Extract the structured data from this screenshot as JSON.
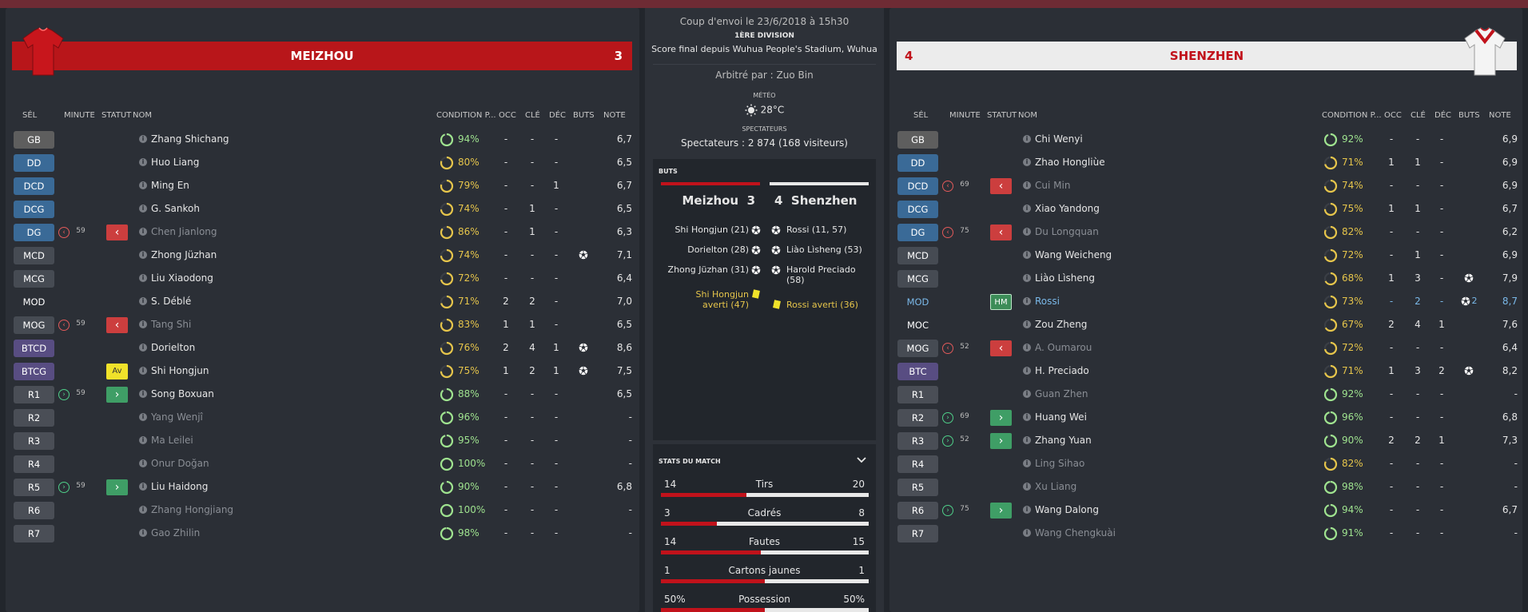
{
  "colors": {
    "home": "#b8161a",
    "away": "#ececec",
    "accent_yellow": "#e6c54b",
    "accent_green": "#9fe38f"
  },
  "headers": {
    "sel": "SÉL",
    "minute": "MINUTE",
    "statut": "STATUT",
    "nom": "NOM",
    "condition": "CONDITION P...",
    "occ": "OCC",
    "cle": "CLÉ",
    "dec": "DÉC",
    "buts": "BUTS",
    "note": "NOTE"
  },
  "home": {
    "name": "MEIZHOU",
    "score": "3",
    "players": [
      {
        "pos": "GB",
        "pclass": "gk",
        "name": "Zhang Shichang",
        "cond": "94%",
        "cc": "g",
        "pct": 0.94,
        "occ": "-",
        "cle": "-",
        "dec": "-",
        "goal": false,
        "note": "6,7"
      },
      {
        "pos": "DD",
        "pclass": "def",
        "name": "Huo Liang",
        "cond": "80%",
        "cc": "y",
        "pct": 0.8,
        "occ": "-",
        "cle": "-",
        "dec": "-",
        "goal": false,
        "note": "6,5"
      },
      {
        "pos": "DCD",
        "pclass": "def",
        "name": "Ming En",
        "cond": "79%",
        "cc": "y",
        "pct": 0.79,
        "occ": "-",
        "cle": "-",
        "dec": "1",
        "goal": false,
        "note": "6,7"
      },
      {
        "pos": "DCG",
        "pclass": "def",
        "name": "G. Sankoh",
        "cond": "74%",
        "cc": "y",
        "pct": 0.74,
        "occ": "-",
        "cle": "1",
        "dec": "-",
        "goal": false,
        "note": "6,5"
      },
      {
        "pos": "DG",
        "pclass": "def",
        "sub": "out",
        "minute": "59",
        "status": "out",
        "name": "Chen Jianlong",
        "dim": true,
        "cond": "86%",
        "cc": "y",
        "pct": 0.86,
        "occ": "-",
        "cle": "1",
        "dec": "-",
        "goal": false,
        "note": "6,3"
      },
      {
        "pos": "MCD",
        "pclass": "mid",
        "name": "Zhong Jüzhan",
        "cond": "74%",
        "cc": "y",
        "pct": 0.74,
        "occ": "-",
        "cle": "-",
        "dec": "-",
        "goal": true,
        "note": "7,1"
      },
      {
        "pos": "MCG",
        "pclass": "mid",
        "name": "Liu Xiaodong",
        "cond": "72%",
        "cc": "y",
        "pct": 0.72,
        "occ": "-",
        "cle": "-",
        "dec": "-",
        "goal": false,
        "note": "6,4"
      },
      {
        "pos": "MOD",
        "pclass": "plain",
        "name": "S. Déblé",
        "cond": "71%",
        "cc": "y",
        "pct": 0.71,
        "occ": "2",
        "cle": "2",
        "dec": "-",
        "goal": false,
        "note": "7,0"
      },
      {
        "pos": "MOG",
        "pclass": "mid",
        "sub": "out",
        "minute": "59",
        "status": "out",
        "name": "Tang Shi",
        "dim": true,
        "cond": "83%",
        "cc": "y",
        "pct": 0.83,
        "occ": "1",
        "cle": "1",
        "dec": "-",
        "goal": false,
        "note": "6,5"
      },
      {
        "pos": "BTCD",
        "pclass": "att",
        "name": "Dorielton",
        "cond": "76%",
        "cc": "y",
        "pct": 0.76,
        "occ": "2",
        "cle": "4",
        "dec": "1",
        "goal": true,
        "note": "8,6"
      },
      {
        "pos": "BTCG",
        "pclass": "att",
        "status": "av",
        "status_label": "Av",
        "name": "Shi Hongjun",
        "cond": "75%",
        "cc": "y",
        "pct": 0.75,
        "occ": "1",
        "cle": "2",
        "dec": "1",
        "goal": true,
        "note": "7,5"
      },
      {
        "pos": "R1",
        "pclass": "sub",
        "sub": "in",
        "minute": "59",
        "status": "in",
        "name": "Song Boxuan",
        "cond": "88%",
        "cc": "g",
        "pct": 0.88,
        "occ": "-",
        "cle": "-",
        "dec": "-",
        "goal": false,
        "note": "6,5"
      },
      {
        "pos": "R2",
        "pclass": "sub",
        "name": "Yang Wenjî",
        "dim": true,
        "cond": "96%",
        "cc": "g",
        "pct": 0.96,
        "occ": "-",
        "cle": "-",
        "dec": "-",
        "goal": false,
        "note": "-"
      },
      {
        "pos": "R3",
        "pclass": "sub",
        "name": "Ma Leilei",
        "dim": true,
        "cond": "95%",
        "cc": "g",
        "pct": 0.95,
        "occ": "-",
        "cle": "-",
        "dec": "-",
        "goal": false,
        "note": "-"
      },
      {
        "pos": "R4",
        "pclass": "sub",
        "name": "Onur Doğan",
        "dim": true,
        "cond": "100%",
        "cc": "g",
        "pct": 1.0,
        "occ": "-",
        "cle": "-",
        "dec": "-",
        "goal": false,
        "note": "-"
      },
      {
        "pos": "R5",
        "pclass": "sub",
        "sub": "in",
        "minute": "59",
        "status": "in",
        "name": "Liu Haidong",
        "cond": "90%",
        "cc": "g",
        "pct": 0.9,
        "occ": "-",
        "cle": "-",
        "dec": "-",
        "goal": false,
        "note": "6,8"
      },
      {
        "pos": "R6",
        "pclass": "sub",
        "name": "Zhang Hongjiang",
        "dim": true,
        "cond": "100%",
        "cc": "g",
        "pct": 1.0,
        "occ": "-",
        "cle": "-",
        "dec": "-",
        "goal": false,
        "note": "-"
      },
      {
        "pos": "R7",
        "pclass": "sub",
        "name": "Gao Zhilin",
        "dim": true,
        "cond": "98%",
        "cc": "g",
        "pct": 0.98,
        "occ": "-",
        "cle": "-",
        "dec": "-",
        "goal": false,
        "note": "-"
      }
    ]
  },
  "away": {
    "name": "SHENZHEN",
    "score": "4",
    "players": [
      {
        "pos": "GB",
        "pclass": "gk",
        "name": "Chi Wenyi",
        "cond": "92%",
        "cc": "g",
        "pct": 0.92,
        "occ": "-",
        "cle": "-",
        "dec": "-",
        "goal": false,
        "note": "6,9"
      },
      {
        "pos": "DD",
        "pclass": "def",
        "name": "Zhao Hongliùe",
        "cond": "71%",
        "cc": "y",
        "pct": 0.71,
        "occ": "1",
        "cle": "1",
        "dec": "-",
        "goal": false,
        "note": "6,9"
      },
      {
        "pos": "DCD",
        "pclass": "def",
        "sub": "out",
        "minute": "69",
        "status": "out",
        "name": "Cui Min",
        "dim": true,
        "cond": "74%",
        "cc": "y",
        "pct": 0.74,
        "occ": "-",
        "cle": "-",
        "dec": "-",
        "goal": false,
        "note": "6,9"
      },
      {
        "pos": "DCG",
        "pclass": "def",
        "name": "Xiao Yandong",
        "cond": "75%",
        "cc": "y",
        "pct": 0.75,
        "occ": "1",
        "cle": "1",
        "dec": "-",
        "goal": false,
        "note": "6,7"
      },
      {
        "pos": "DG",
        "pclass": "def",
        "sub": "out",
        "minute": "75",
        "status": "out",
        "name": "Du Longquan",
        "dim": true,
        "cond": "82%",
        "cc": "y",
        "pct": 0.82,
        "occ": "-",
        "cle": "-",
        "dec": "-",
        "goal": false,
        "note": "6,2"
      },
      {
        "pos": "MCD",
        "pclass": "mid",
        "name": "Wang Weicheng",
        "cond": "72%",
        "cc": "y",
        "pct": 0.72,
        "occ": "-",
        "cle": "1",
        "dec": "-",
        "goal": false,
        "note": "6,9"
      },
      {
        "pos": "MCG",
        "pclass": "mid",
        "name": "Liào Lìsheng",
        "cond": "68%",
        "cc": "y",
        "pct": 0.68,
        "occ": "1",
        "cle": "3",
        "dec": "-",
        "goal": true,
        "note": "7,9"
      },
      {
        "pos": "MOD",
        "pclass": "plain",
        "blue": true,
        "status": "hm",
        "status_label": "HM",
        "name": "Rossi",
        "cond": "73%",
        "cc": "y",
        "pct": 0.73,
        "occ": "-",
        "cle": "2",
        "dec": "-",
        "goal": true,
        "goal_count": "2",
        "note": "8,7"
      },
      {
        "pos": "MOC",
        "pclass": "plain",
        "name": "Zou Zheng",
        "cond": "67%",
        "cc": "y",
        "pct": 0.67,
        "occ": "2",
        "cle": "4",
        "dec": "1",
        "goal": false,
        "note": "7,6"
      },
      {
        "pos": "MOG",
        "pclass": "mid",
        "sub": "out",
        "minute": "52",
        "status": "out",
        "name": "A. Oumarou",
        "dim": true,
        "cond": "72%",
        "cc": "y",
        "pct": 0.72,
        "occ": "-",
        "cle": "-",
        "dec": "-",
        "goal": false,
        "note": "6,4"
      },
      {
        "pos": "BTC",
        "pclass": "att",
        "name": "H. Preciado",
        "cond": "71%",
        "cc": "y",
        "pct": 0.71,
        "occ": "1",
        "cle": "3",
        "dec": "2",
        "goal": true,
        "note": "8,2"
      },
      {
        "pos": "R1",
        "pclass": "sub",
        "name": "Guan Zhen",
        "dim": true,
        "cond": "92%",
        "cc": "g",
        "pct": 0.92,
        "occ": "-",
        "cle": "-",
        "dec": "-",
        "goal": false,
        "note": "-"
      },
      {
        "pos": "R2",
        "pclass": "sub",
        "sub": "in",
        "minute": "69",
        "status": "in",
        "name": "Huang Wei",
        "cond": "96%",
        "cc": "g",
        "pct": 0.96,
        "occ": "-",
        "cle": "-",
        "dec": "-",
        "goal": false,
        "note": "6,8"
      },
      {
        "pos": "R3",
        "pclass": "sub",
        "sub": "in",
        "minute": "52",
        "status": "in",
        "name": "Zhang Yuan",
        "cond": "90%",
        "cc": "g",
        "pct": 0.9,
        "occ": "2",
        "cle": "2",
        "dec": "1",
        "goal": false,
        "note": "7,3"
      },
      {
        "pos": "R4",
        "pclass": "sub",
        "name": "Ling Sihao",
        "dim": true,
        "cond": "82%",
        "cc": "y",
        "pct": 0.82,
        "occ": "-",
        "cle": "-",
        "dec": "-",
        "goal": false,
        "note": "-"
      },
      {
        "pos": "R5",
        "pclass": "sub",
        "name": "Xu Liang",
        "dim": true,
        "cond": "98%",
        "cc": "g",
        "pct": 0.98,
        "occ": "-",
        "cle": "-",
        "dec": "-",
        "goal": false,
        "note": "-"
      },
      {
        "pos": "R6",
        "pclass": "sub",
        "sub": "in",
        "minute": "75",
        "status": "in",
        "name": "Wang Dalong",
        "cond": "94%",
        "cc": "g",
        "pct": 0.94,
        "occ": "-",
        "cle": "-",
        "dec": "-",
        "goal": false,
        "note": "6,7"
      },
      {
        "pos": "R7",
        "pclass": "sub",
        "name": "Wang Chengkuài",
        "dim": true,
        "cond": "91%",
        "cc": "g",
        "pct": 0.91,
        "occ": "-",
        "cle": "-",
        "dec": "-",
        "goal": false,
        "note": "-"
      }
    ]
  },
  "center": {
    "kickoff": "Coup d'envoi le 23/6/2018 à 15h30",
    "division": "1ÈRE DIVISION",
    "final": "Score final depuis Wuhua People's Stadium, Wuhua",
    "referee": "Arbitré par : Zuo Bin",
    "meteo_label": "MÉTÉO",
    "temperature": "28°C",
    "spectators_label": "SPECTATEURS",
    "spectators": "Spectateurs : 2 874 (168 visiteurs)",
    "buts_label": "BUTS",
    "home_team": "Meizhou",
    "home_score": "3",
    "away_score": "4",
    "away_team": "Shenzhen",
    "home_goals": [
      "Shi Hongjun (21)",
      "Dorielton (28)",
      "Zhong Jüzhan (31)"
    ],
    "home_card": "Shi Hongjun averti (47)",
    "away_goals": [
      "Rossi (11, 57)",
      "Liào Lìsheng (53)",
      "Harold Preciado (58)"
    ],
    "away_card": "Rossi averti (36)",
    "stats_label": "STATS DU MATCH",
    "stats": [
      {
        "l": "14",
        "name": "Tirs",
        "r": "20",
        "frac": 0.41
      },
      {
        "l": "3",
        "name": "Cadrés",
        "r": "8",
        "frac": 0.27
      },
      {
        "l": "14",
        "name": "Fautes",
        "r": "15",
        "frac": 0.48
      },
      {
        "l": "1",
        "name": "Cartons jaunes",
        "r": "1",
        "frac": 0.5
      },
      {
        "l": "50%",
        "name": "Possession",
        "r": "50%",
        "frac": 0.5
      }
    ]
  }
}
